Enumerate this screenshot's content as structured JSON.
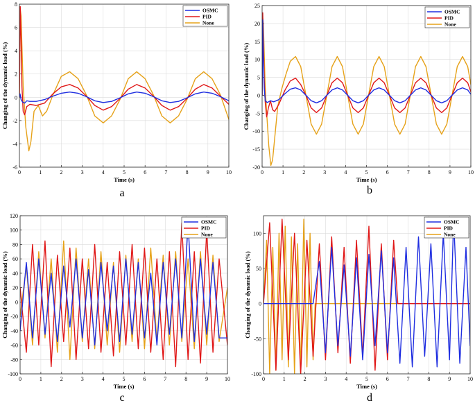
{
  "colors": {
    "OSMC": "#1f2ee0",
    "PID": "#e01818",
    "None": "#e6a219"
  },
  "chart_data": [
    {
      "id": "a",
      "type": "line",
      "panel_label": "a",
      "xlabel": "Time (s)",
      "ylabel": "Changing of the dynamic load (%)",
      "xlim": [
        0,
        10
      ],
      "ylim": [
        -6,
        8
      ],
      "xticks": [
        0,
        1,
        2,
        3,
        4,
        5,
        6,
        7,
        8,
        9,
        10
      ],
      "yticks": [
        -6,
        -4,
        -2,
        0,
        2,
        4,
        6,
        8
      ],
      "grid": true,
      "legend": "top-right",
      "series": [
        {
          "name": "OSMC",
          "x": [
            0,
            0.03,
            0.08,
            0.15,
            0.25,
            0.35,
            0.5,
            0.8,
            1.2,
            1.6,
            2.0,
            2.4,
            2.8,
            3.2,
            3.6,
            4.0,
            4.4,
            4.8,
            5.2,
            5.6,
            6.0,
            6.4,
            6.8,
            7.2,
            7.6,
            8.0,
            8.4,
            8.8,
            9.2,
            9.6,
            10.0
          ],
          "y": [
            0,
            0.3,
            -0.2,
            -0.4,
            -0.5,
            -0.3,
            -0.35,
            -0.35,
            -0.2,
            0.1,
            0.35,
            0.45,
            0.35,
            0.05,
            -0.3,
            -0.45,
            -0.35,
            -0.05,
            0.3,
            0.45,
            0.35,
            0.05,
            -0.3,
            -0.45,
            -0.35,
            -0.05,
            0.3,
            0.45,
            0.35,
            0.05,
            -0.3
          ]
        },
        {
          "name": "PID",
          "x": [
            0,
            0.04,
            0.08,
            0.12,
            0.18,
            0.25,
            0.35,
            0.5,
            0.8,
            1.2,
            1.6,
            2.0,
            2.4,
            2.8,
            3.2,
            3.6,
            4.0,
            4.4,
            4.8,
            5.2,
            5.6,
            6.0,
            6.4,
            6.8,
            7.2,
            7.6,
            8.0,
            8.4,
            8.8,
            9.2,
            9.6,
            10.0
          ],
          "y": [
            0,
            7.8,
            5.0,
            1.0,
            -1.2,
            -1.5,
            -0.8,
            -0.6,
            -0.7,
            -0.5,
            0.3,
            0.9,
            1.1,
            0.8,
            0.1,
            -0.7,
            -1.1,
            -0.8,
            -0.1,
            0.7,
            1.1,
            0.8,
            0.1,
            -0.7,
            -1.1,
            -0.8,
            -0.1,
            0.7,
            1.1,
            0.8,
            0.1,
            -0.6
          ]
        },
        {
          "name": "None",
          "x": [
            0,
            0.04,
            0.08,
            0.12,
            0.18,
            0.3,
            0.45,
            0.55,
            0.7,
            0.9,
            1.1,
            1.3,
            1.6,
            2.0,
            2.4,
            2.8,
            3.2,
            3.6,
            4.0,
            4.4,
            4.8,
            5.2,
            5.6,
            6.0,
            6.4,
            6.8,
            7.2,
            7.6,
            8.0,
            8.4,
            8.8,
            9.2,
            9.6,
            10.0
          ],
          "y": [
            0,
            7.6,
            7.0,
            4.5,
            1.0,
            -2.5,
            -4.6,
            -3.8,
            -1.2,
            -0.7,
            -1.6,
            -1.2,
            0.2,
            1.8,
            2.2,
            1.6,
            0.2,
            -1.6,
            -2.2,
            -1.6,
            -0.2,
            1.6,
            2.2,
            1.6,
            0.2,
            -1.6,
            -2.2,
            -1.6,
            -0.2,
            1.6,
            2.2,
            1.6,
            0.2,
            -1.9
          ]
        }
      ]
    },
    {
      "id": "b",
      "type": "line",
      "panel_label": "b",
      "xlabel": "Time (s)",
      "ylabel": "Changing of the dynamic load (%)",
      "xlim": [
        0,
        10
      ],
      "ylim": [
        -20,
        25
      ],
      "xticks": [
        0,
        1,
        2,
        3,
        4,
        5,
        6,
        7,
        8,
        9,
        10
      ],
      "yticks": [
        -20,
        -15,
        -10,
        -5,
        0,
        5,
        10,
        15,
        20,
        25
      ],
      "grid": true,
      "legend": "top-right",
      "series": [
        {
          "name": "OSMC",
          "x": [
            0,
            0.03,
            0.06,
            0.1,
            0.15,
            0.25,
            0.4,
            0.55,
            0.8,
            1.1,
            1.35,
            1.6,
            1.85,
            2.1,
            2.35,
            2.6,
            2.85,
            3.1,
            3.35,
            3.6,
            3.85,
            4.1,
            4.35,
            4.6,
            4.85,
            5.1,
            5.35,
            5.6,
            5.85,
            6.1,
            6.35,
            6.6,
            6.85,
            7.1,
            7.35,
            7.6,
            7.85,
            8.1,
            8.35,
            8.6,
            8.85,
            9.1,
            9.35,
            9.6,
            9.85,
            10.0
          ],
          "y": [
            0,
            21.0,
            10.0,
            2.0,
            -1.5,
            -2.0,
            -1.5,
            -1.8,
            -1.2,
            0.5,
            1.7,
            2.1,
            1.5,
            0.0,
            -1.5,
            -2.1,
            -1.5,
            0.0,
            1.5,
            2.1,
            1.5,
            0.0,
            -1.5,
            -2.1,
            -1.5,
            0.0,
            1.5,
            2.1,
            1.5,
            0.0,
            -1.5,
            -2.1,
            -1.5,
            0.0,
            1.5,
            2.1,
            1.5,
            0.0,
            -1.5,
            -2.1,
            -1.5,
            0.0,
            1.5,
            2.1,
            1.5,
            0.3
          ]
        },
        {
          "name": "PID",
          "x": [
            0,
            0.03,
            0.06,
            0.1,
            0.15,
            0.22,
            0.3,
            0.4,
            0.5,
            0.6,
            0.8,
            1.1,
            1.35,
            1.6,
            1.85,
            2.1,
            2.35,
            2.6,
            2.85,
            3.1,
            3.35,
            3.6,
            3.85,
            4.1,
            4.35,
            4.6,
            4.85,
            5.1,
            5.35,
            5.6,
            5.85,
            6.1,
            6.35,
            6.6,
            6.85,
            7.1,
            7.35,
            7.6,
            7.85,
            8.1,
            8.35,
            8.6,
            8.85,
            9.1,
            9.35,
            9.6,
            9.85,
            10.0
          ],
          "y": [
            0,
            23.0,
            15.0,
            5.0,
            -2.0,
            -6.0,
            -3.5,
            -1.5,
            -4.0,
            -4.5,
            -2.5,
            1.5,
            4.0,
            4.8,
            3.0,
            0.0,
            -3.5,
            -4.8,
            -3.5,
            0.0,
            3.5,
            4.8,
            3.5,
            0.0,
            -3.5,
            -4.8,
            -3.5,
            0.0,
            3.5,
            4.8,
            3.5,
            0.0,
            -3.5,
            -4.8,
            -3.5,
            0.0,
            3.5,
            4.8,
            3.5,
            0.0,
            -3.5,
            -4.8,
            -3.5,
            0.0,
            3.5,
            4.8,
            3.5,
            1.0
          ]
        },
        {
          "name": "None",
          "x": [
            0,
            0.03,
            0.06,
            0.1,
            0.15,
            0.22,
            0.32,
            0.42,
            0.5,
            0.6,
            0.75,
            0.95,
            1.15,
            1.35,
            1.6,
            1.85,
            2.1,
            2.35,
            2.6,
            2.85,
            3.1,
            3.35,
            3.6,
            3.85,
            4.1,
            4.35,
            4.6,
            4.85,
            5.1,
            5.35,
            5.6,
            5.85,
            6.1,
            6.35,
            6.6,
            6.85,
            7.1,
            7.35,
            7.6,
            7.85,
            8.1,
            8.35,
            8.6,
            8.85,
            9.1,
            9.35,
            9.6,
            9.85,
            10.0
          ],
          "y": [
            0,
            21.5,
            20.0,
            12.0,
            2.0,
            -5.0,
            -14.0,
            -19.5,
            -18.0,
            -12.0,
            -3.0,
            2.0,
            6.0,
            9.5,
            10.8,
            8.0,
            0.0,
            -8.0,
            -10.8,
            -8.0,
            0.0,
            8.0,
            10.8,
            8.0,
            0.0,
            -8.0,
            -10.8,
            -8.0,
            0.0,
            8.0,
            10.8,
            8.0,
            0.0,
            -8.0,
            -10.8,
            -8.0,
            0.0,
            8.0,
            10.8,
            8.0,
            0.0,
            -8.0,
            -10.8,
            -8.0,
            0.0,
            8.0,
            10.8,
            8.0,
            3.0
          ]
        }
      ]
    },
    {
      "id": "c",
      "type": "line",
      "panel_label": "c",
      "xlabel": "Time (s)",
      "ylabel": "Changing of the dynamic load (%)",
      "xlim": [
        0,
        10
      ],
      "ylim": [
        -100,
        120
      ],
      "xticks": [
        0,
        1,
        2,
        3,
        4,
        5,
        6,
        7,
        8,
        9,
        10
      ],
      "yticks": [
        -100,
        -80,
        -60,
        -40,
        -20,
        0,
        20,
        40,
        60,
        80,
        100,
        120
      ],
      "grid": true,
      "legend": "top-right",
      "series": [
        {
          "name": "OSMC",
          "x": [
            0,
            0.3,
            0.6,
            0.9,
            1.2,
            1.5,
            1.8,
            2.1,
            2.4,
            2.7,
            3.0,
            3.3,
            3.6,
            3.9,
            4.2,
            4.5,
            4.8,
            5.1,
            5.4,
            5.7,
            6.0,
            6.3,
            6.6,
            6.9,
            7.2,
            7.5,
            7.8,
            8.1,
            8.4,
            8.7,
            9.0,
            9.3,
            9.6,
            10.0
          ],
          "y": [
            -40,
            55,
            -50,
            60,
            -45,
            40,
            -55,
            50,
            -35,
            60,
            -50,
            45,
            -60,
            55,
            -40,
            50,
            -55,
            60,
            -45,
            55,
            -50,
            40,
            -60,
            55,
            -45,
            60,
            -50,
            110,
            -55,
            60,
            -45,
            55,
            -50,
            -50
          ]
        },
        {
          "name": "PID",
          "x": [
            0,
            0.3,
            0.6,
            0.9,
            1.2,
            1.5,
            1.8,
            2.1,
            2.4,
            2.7,
            3.0,
            3.3,
            3.6,
            3.9,
            4.2,
            4.5,
            4.8,
            5.1,
            5.4,
            5.7,
            6.0,
            6.3,
            6.6,
            6.9,
            7.2,
            7.5,
            7.8,
            8.1,
            8.4,
            8.7,
            9.0,
            9.3,
            9.6,
            10.0
          ],
          "y": [
            20,
            -70,
            80,
            -60,
            85,
            -90,
            65,
            -55,
            75,
            -80,
            60,
            -65,
            80,
            -70,
            55,
            -75,
            70,
            -60,
            80,
            -65,
            75,
            -70,
            60,
            -80,
            70,
            -90,
            110,
            -80,
            70,
            -85,
            100,
            -70,
            60,
            -60
          ]
        },
        {
          "name": "None",
          "x": [
            0,
            0.3,
            0.6,
            0.9,
            1.2,
            1.5,
            1.8,
            2.1,
            2.4,
            2.7,
            3.0,
            3.3,
            3.6,
            3.9,
            4.2,
            4.5,
            4.8,
            5.1,
            5.4,
            5.7,
            6.0,
            6.3,
            6.6,
            6.9,
            7.2,
            7.5,
            7.8,
            8.1,
            8.4,
            8.7,
            9.0,
            9.3,
            9.6,
            10.0
          ],
          "y": [
            -20,
            50,
            -60,
            70,
            -50,
            60,
            -70,
            85,
            -80,
            75,
            -55,
            60,
            -65,
            70,
            -60,
            55,
            -70,
            65,
            -55,
            60,
            -65,
            75,
            -55,
            65,
            -60,
            70,
            -55,
            60,
            -65,
            70,
            -60,
            65,
            -55,
            20
          ]
        }
      ]
    },
    {
      "id": "d",
      "type": "line",
      "panel_label": "d",
      "xlabel": "Time (s)",
      "ylabel": "Changing of the dynamic load (%)",
      "xlim": [
        0,
        10
      ],
      "ylim": [
        -100,
        125
      ],
      "xticks": [
        0,
        1,
        2,
        3,
        4,
        5,
        6,
        7,
        8,
        9,
        10
      ],
      "yticks": [
        -100,
        -50,
        0,
        50,
        100
      ],
      "grid": true,
      "legend": "top-right",
      "series": [
        {
          "name": "OSMC",
          "x": [
            0,
            2.4,
            2.7,
            3.0,
            3.3,
            3.6,
            3.9,
            4.2,
            4.5,
            4.8,
            5.1,
            5.4,
            5.7,
            6.0,
            6.3,
            6.6,
            6.9,
            7.2,
            7.5,
            7.8,
            8.1,
            8.4,
            8.7,
            9.0,
            9.2,
            9.5,
            9.8,
            10.0
          ],
          "y": [
            0,
            0,
            60,
            -70,
            80,
            -60,
            55,
            -75,
            65,
            -80,
            70,
            -60,
            75,
            -70,
            65,
            -85,
            80,
            -90,
            95,
            -75,
            85,
            -90,
            100,
            -80,
            120,
            -85,
            80,
            -60
          ]
        },
        {
          "name": "PID",
          "x": [
            0,
            0.3,
            0.6,
            0.9,
            1.2,
            1.5,
            1.8,
            2.1,
            2.4,
            2.7,
            3.0,
            3.3,
            3.6,
            3.9,
            4.2,
            4.5,
            4.8,
            5.1,
            5.4,
            5.7,
            6.0,
            6.3,
            6.5,
            10.0
          ],
          "y": [
            0,
            115,
            -95,
            120,
            -80,
            100,
            -100,
            90,
            -75,
            85,
            -80,
            95,
            -70,
            80,
            -85,
            90,
            -75,
            110,
            -95,
            85,
            -80,
            90,
            0,
            0
          ]
        },
        {
          "name": "None",
          "x": [
            0,
            0.15,
            0.3,
            0.45,
            0.6,
            0.75,
            0.9,
            1.05,
            1.2,
            1.35,
            1.5,
            1.65,
            1.8,
            1.95,
            2.1,
            2.25,
            2.4,
            2.5,
            10.0
          ],
          "y": [
            0,
            90,
            -100,
            80,
            -95,
            100,
            -80,
            110,
            -90,
            95,
            -100,
            85,
            -100,
            120,
            -90,
            100,
            -80,
            0,
            0
          ]
        }
      ]
    }
  ]
}
